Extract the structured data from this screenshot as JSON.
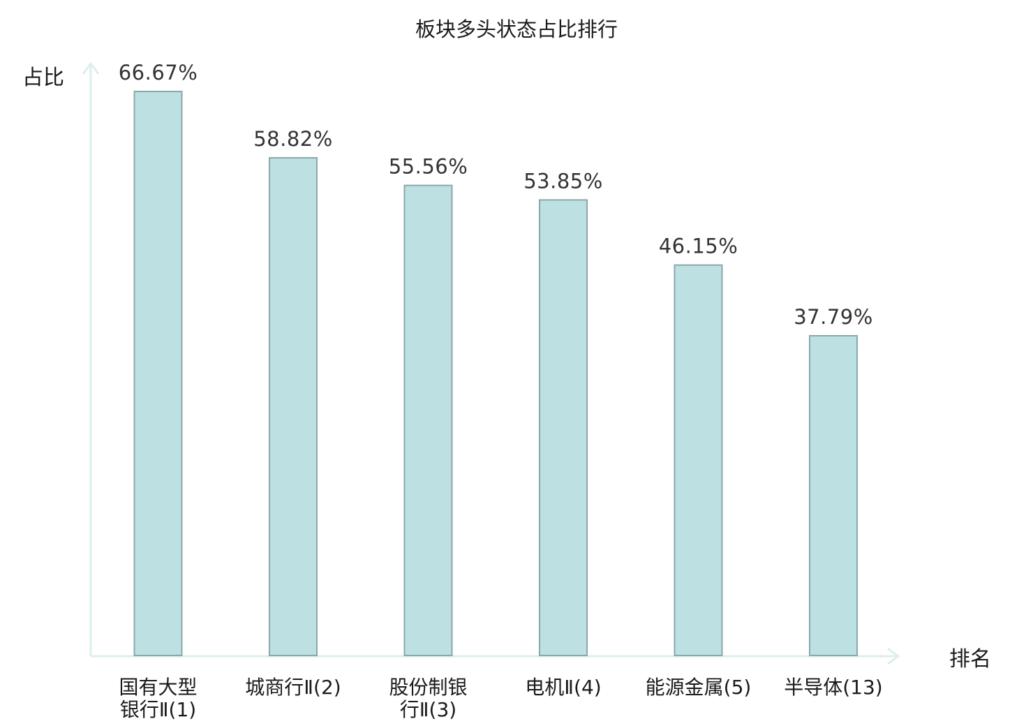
{
  "chart_data": {
    "type": "bar",
    "title": "板块多头状态占比排行",
    "ylabel": "占比",
    "xlabel": "排名",
    "ylim": [
      0,
      70
    ],
    "categories": [
      {
        "lines": [
          "国有大型",
          "银行Ⅱ(1)"
        ],
        "highlight": false
      },
      {
        "lines": [
          "城商行Ⅱ(2)"
        ],
        "highlight": false
      },
      {
        "lines": [
          "股份制银",
          "行Ⅱ(3)"
        ],
        "highlight": false
      },
      {
        "lines": [
          "电机Ⅱ(4)"
        ],
        "highlight": false
      },
      {
        "lines": [
          "能源金属(5)"
        ],
        "highlight": false
      },
      {
        "lines": [
          "半导体(13)"
        ],
        "highlight": true
      }
    ],
    "values": [
      66.67,
      58.82,
      55.56,
      53.85,
      46.15,
      37.79
    ],
    "value_labels": [
      "66.67%",
      "58.82%",
      "55.56%",
      "53.85%",
      "46.15%",
      "37.79%"
    ],
    "grid": false,
    "legend": "none"
  },
  "colors": {
    "bar_fill": "#bde0e3",
    "bar_stroke": "#8aa7aa",
    "axis": "#dcefec",
    "highlight": "#e8191b",
    "text": "#1a1a1a"
  }
}
